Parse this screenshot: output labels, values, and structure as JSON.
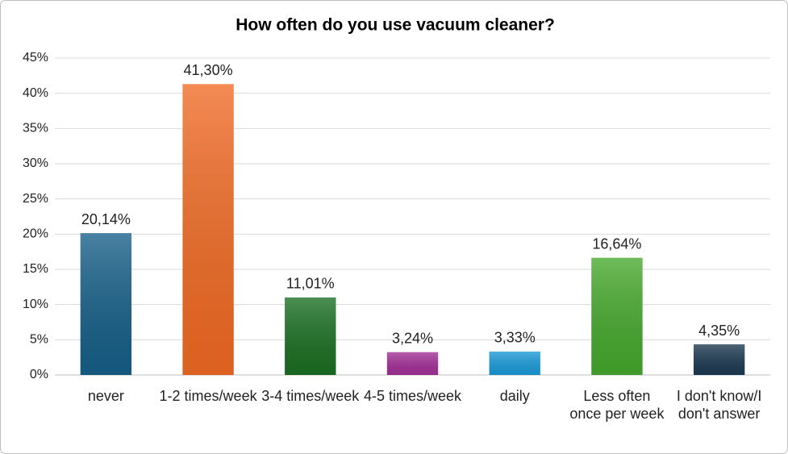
{
  "chart_data": {
    "type": "bar",
    "title": "How often do you use vacuum cleaner?",
    "categories": [
      "never",
      "1-2 times/week",
      "3-4 times/week",
      "4-5 times/week",
      "daily",
      "Less often once per week",
      "I don't know/I don't answer"
    ],
    "values": [
      20.14,
      41.3,
      11.01,
      3.24,
      3.33,
      16.64,
      4.35
    ],
    "value_labels": [
      "20,14%",
      "41,30%",
      "11,01%",
      "3,24%",
      "3,33%",
      "16,64%",
      "4,35%"
    ],
    "colors": [
      "#165f88",
      "#f06a24",
      "#1a6f22",
      "#a22f97",
      "#1a9ad8",
      "#45a82c",
      "#1d3a52"
    ],
    "ylim": [
      0,
      45
    ],
    "yticks": [
      {
        "value": 0,
        "label": "0%"
      },
      {
        "value": 5,
        "label": "5%"
      },
      {
        "value": 10,
        "label": "10%"
      },
      {
        "value": 15,
        "label": "15%"
      },
      {
        "value": 20,
        "label": "20%"
      },
      {
        "value": 25,
        "label": "25%"
      },
      {
        "value": 30,
        "label": "30%"
      },
      {
        "value": 35,
        "label": "35%"
      },
      {
        "value": 40,
        "label": "40%"
      },
      {
        "value": 45,
        "label": "45%"
      }
    ],
    "grid": true
  }
}
